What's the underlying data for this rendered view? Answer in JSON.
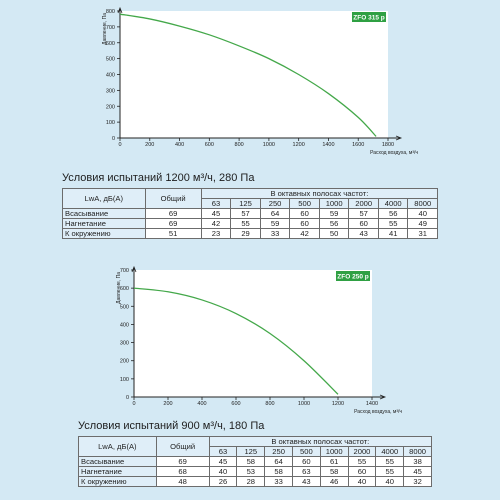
{
  "chart_data": [
    {
      "type": "line",
      "legend_label": "ZFO 315 р",
      "xlabel": "Расход воздуха, м³/ч",
      "ylabel": "Давление, Па",
      "xlim": [
        0,
        1800
      ],
      "ylim": [
        0,
        800
      ],
      "x_ticks": [
        "0",
        "200",
        "400",
        "600",
        "800",
        "1000",
        "1200",
        "1400",
        "1600",
        "1800"
      ],
      "y_ticks": [
        "0",
        "100",
        "200",
        "300",
        "400",
        "500",
        "600",
        "700",
        "800"
      ],
      "grid": false,
      "color": "#44a84a",
      "series": [
        {
          "x": [
            0,
            200,
            400,
            600,
            800,
            1000,
            1200,
            1400,
            1600,
            1720
          ],
          "y": [
            780,
            750,
            705,
            650,
            580,
            500,
            400,
            280,
            130,
            10
          ]
        }
      ]
    },
    {
      "type": "line",
      "legend_label": "ZFO 250 р",
      "xlabel": "Расход воздуха, м³/ч",
      "ylabel": "Давление, Па",
      "xlim": [
        0,
        1400
      ],
      "ylim": [
        0,
        700
      ],
      "x_ticks": [
        "0",
        "200",
        "400",
        "600",
        "800",
        "1000",
        "1200",
        "1400"
      ],
      "y_ticks": [
        "0",
        "100",
        "200",
        "300",
        "400",
        "500",
        "600",
        "700"
      ],
      "grid": false,
      "color": "#44a84a",
      "series": [
        {
          "x": [
            0,
            200,
            400,
            600,
            800,
            1000,
            1200
          ],
          "y": [
            600,
            580,
            535,
            460,
            350,
            200,
            15
          ]
        }
      ]
    }
  ],
  "tables": [
    {
      "title": "Условия испытаний 1200 м³/ч, 280 Па",
      "col_label": "LwA, дБ(А)",
      "col_total": "Общий",
      "band_header": "В октавных полосах частот:",
      "freqs": [
        "63",
        "125",
        "250",
        "500",
        "1000",
        "2000",
        "4000",
        "8000"
      ],
      "rows": [
        {
          "label": "Всасывание",
          "total": "69",
          "values": [
            "45",
            "57",
            "64",
            "60",
            "59",
            "57",
            "56",
            "40"
          ]
        },
        {
          "label": "Нагнетание",
          "total": "69",
          "values": [
            "42",
            "55",
            "59",
            "60",
            "56",
            "60",
            "55",
            "49"
          ]
        },
        {
          "label": "К окружению",
          "total": "51",
          "values": [
            "23",
            "29",
            "33",
            "42",
            "50",
            "43",
            "41",
            "31"
          ]
        }
      ]
    },
    {
      "title": "Условия испытаний 900 м³/ч, 180 Па",
      "col_label": "LwA, дБ(А)",
      "col_total": "Общий",
      "band_header": "В октавных полосах частот:",
      "freqs": [
        "63",
        "125",
        "250",
        "500",
        "1000",
        "2000",
        "4000",
        "8000"
      ],
      "rows": [
        {
          "label": "Всасывание",
          "total": "69",
          "values": [
            "45",
            "58",
            "64",
            "60",
            "61",
            "55",
            "55",
            "38"
          ]
        },
        {
          "label": "Нагнетание",
          "total": "68",
          "values": [
            "40",
            "53",
            "58",
            "63",
            "58",
            "60",
            "55",
            "45"
          ]
        },
        {
          "label": "К окружению",
          "total": "48",
          "values": [
            "26",
            "28",
            "33",
            "43",
            "46",
            "40",
            "40",
            "32"
          ]
        }
      ]
    }
  ]
}
